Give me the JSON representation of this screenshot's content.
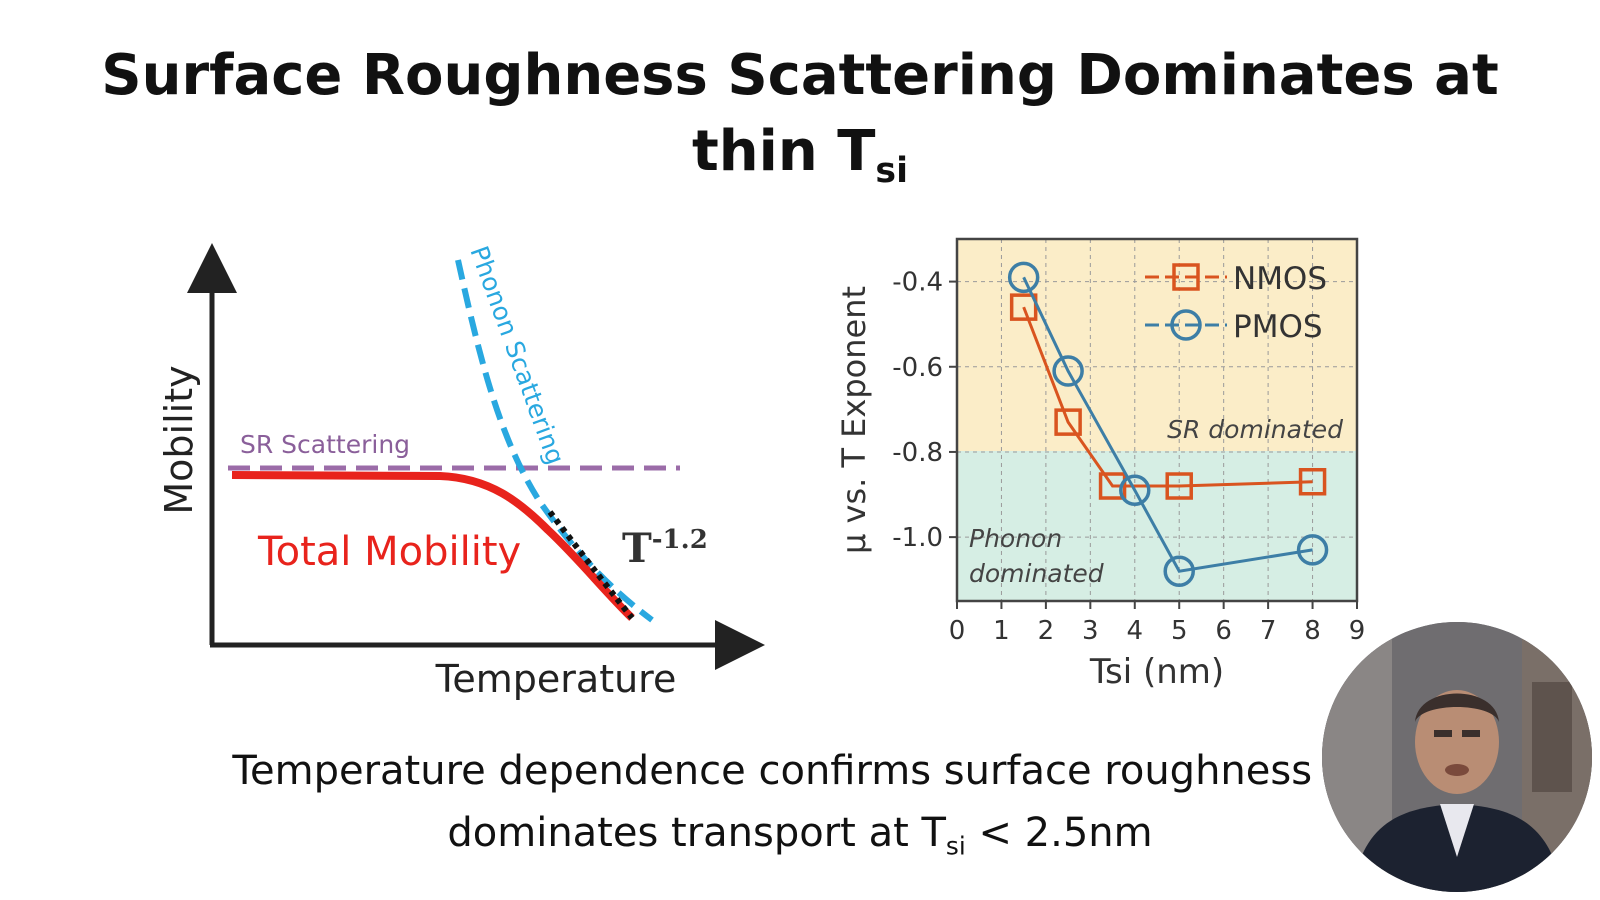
{
  "slide": {
    "title_line1": "Surface Roughness Scattering Dominates at",
    "title_line2_main": "thin T",
    "title_line2_sub": "si",
    "caption_line1": "Temperature dependence confirms surface roughness sc",
    "caption_line2_main": "dominates transport at T",
    "caption_line2_sub": "si",
    "caption_line2_tail": " < 2.5nm"
  },
  "left_diagram": {
    "y_label": "Mobility",
    "x_label": "Temperature",
    "sr_label": "SR Scattering",
    "phonon_label": "Phonon Scattering",
    "total_label": "Total Mobility",
    "power_base": "T",
    "power_exp": "-1.2",
    "colors": {
      "sr": "#9b6ca8",
      "phonon": "#29a8e0",
      "total": "#e8231c"
    }
  },
  "chart_data": {
    "type": "scatter",
    "xlabel": "Tsi (nm)",
    "ylabel": "μ vs. T Exponent",
    "xlim": [
      0,
      9
    ],
    "ylim": [
      -1.15,
      -0.3
    ],
    "x_ticks": [
      "0",
      "1",
      "2",
      "3",
      "4",
      "5",
      "6",
      "7",
      "8",
      "9"
    ],
    "y_ticks": [
      "-0.4",
      "-0.6",
      "-0.8",
      "-1.0"
    ],
    "y_tick_values": [
      -0.4,
      -0.6,
      -0.8,
      -1.0
    ],
    "grid": true,
    "legend_position": "top-right",
    "series": [
      {
        "name": "NMOS",
        "marker": "square",
        "color": "#d9541f",
        "x": [
          1.5,
          2.5,
          3.5,
          5,
          8
        ],
        "y": [
          -0.46,
          -0.73,
          -0.88,
          -0.88,
          -0.87
        ]
      },
      {
        "name": "PMOS",
        "marker": "circle",
        "color": "#3d7ea6",
        "x": [
          1.5,
          2.5,
          4,
          5,
          8
        ],
        "y": [
          -0.39,
          -0.61,
          -0.89,
          -1.08,
          -1.03
        ]
      }
    ],
    "regions": [
      {
        "label": "SR dominated",
        "from": -0.8,
        "to": -0.3,
        "color": "#fbedc8"
      },
      {
        "label": "Phonon dominated",
        "from": -1.15,
        "to": -0.8,
        "color": "#d6eee4"
      }
    ],
    "region_label_phonon_line1": "Phonon",
    "region_label_phonon_line2": "dominated"
  }
}
